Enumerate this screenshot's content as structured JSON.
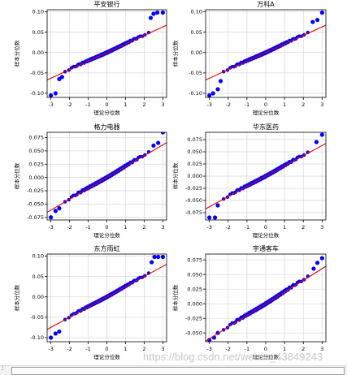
{
  "watermark": "https://blog.csdn.net/weixin_43849243",
  "footer": {
    "marker": ":"
  },
  "colors": {
    "points": "#0000ff",
    "fit_line": "#e00000",
    "grid": "#d9d9d9",
    "axes": "#000000"
  },
  "chart_data": [
    {
      "type": "scatter",
      "title": "平安银行",
      "xlabel": "理论分位数",
      "ylabel": "样本分位数",
      "xlim": [
        -3.2,
        3.2
      ],
      "ylim": [
        -0.11,
        0.105
      ],
      "xticks": [
        -3,
        -2,
        -1,
        0,
        1,
        2,
        3
      ],
      "yticks": [
        -0.1,
        -0.05,
        0.0,
        0.05,
        0.1
      ],
      "yticklabels": [
        "-0.10",
        "-0.05",
        "0.00",
        "0.05",
        "0.10"
      ],
      "grid": true,
      "fit_line": {
        "slope": 0.021,
        "intercept": 0.0
      },
      "tail_points": {
        "low": [
          [
            -3.0,
            -0.105
          ],
          [
            -2.75,
            -0.1
          ],
          [
            -2.55,
            -0.065
          ],
          [
            -2.4,
            -0.06
          ]
        ],
        "high": [
          [
            2.35,
            0.085
          ],
          [
            2.5,
            0.095
          ],
          [
            2.7,
            0.098
          ],
          [
            3.0,
            0.098
          ]
        ]
      }
    },
    {
      "type": "scatter",
      "title": "万科A",
      "xlabel": "理论分位数",
      "ylabel": "样本分位数",
      "xlim": [
        -3.2,
        3.2
      ],
      "ylim": [
        -0.11,
        0.105
      ],
      "xticks": [
        -3,
        -2,
        -1,
        0,
        1,
        2,
        3
      ],
      "yticks": [
        -0.1,
        -0.05,
        0.0,
        0.05,
        0.1
      ],
      "yticklabels": [
        "-0.10",
        "-0.05",
        "0.00",
        "0.05",
        "0.10"
      ],
      "grid": true,
      "fit_line": {
        "slope": 0.021,
        "intercept": 0.0
      },
      "tail_points": {
        "low": [
          [
            -3.0,
            -0.105
          ],
          [
            -2.8,
            -0.1
          ],
          [
            -2.55,
            -0.09
          ],
          [
            -2.4,
            -0.07
          ]
        ],
        "high": [
          [
            2.5,
            0.075
          ],
          [
            2.75,
            0.08
          ],
          [
            3.0,
            0.098
          ]
        ]
      }
    },
    {
      "type": "scatter",
      "title": "格力电器",
      "xlabel": "理论分位数",
      "ylabel": "样本分位数",
      "xlim": [
        -3.2,
        3.2
      ],
      "ylim": [
        -0.08,
        0.085
      ],
      "xticks": [
        -3,
        -2,
        -1,
        0,
        1,
        2,
        3
      ],
      "yticks": [
        -0.075,
        -0.05,
        -0.025,
        0.0,
        0.025,
        0.05,
        0.075
      ],
      "yticklabels": [
        "-0.075",
        "-0.050",
        "-0.025",
        "0.000",
        "0.025",
        "0.050",
        "0.075"
      ],
      "grid": true,
      "fit_line": {
        "slope": 0.0205,
        "intercept": 0.0
      },
      "tail_points": {
        "low": [
          [
            -3.0,
            -0.075
          ],
          [
            -2.75,
            -0.063
          ],
          [
            -2.55,
            -0.058
          ]
        ],
        "high": [
          [
            2.5,
            0.06
          ],
          [
            2.75,
            0.065
          ],
          [
            3.0,
            0.085
          ]
        ]
      }
    },
    {
      "type": "scatter",
      "title": "华东医药",
      "xlabel": "理论分位数",
      "ylabel": "样本分位数",
      "xlim": [
        -3.2,
        3.2
      ],
      "ylim": [
        -0.09,
        0.09
      ],
      "xticks": [
        -3,
        -2,
        -1,
        0,
        1,
        2,
        3
      ],
      "yticks": [
        -0.075,
        -0.05,
        -0.025,
        0.0,
        0.025,
        0.05,
        0.075
      ],
      "yticklabels": [
        "-0.075",
        "-0.050",
        "-0.025",
        "0.000",
        "0.025",
        "0.050",
        "0.075"
      ],
      "grid": true,
      "fit_line": {
        "slope": 0.021,
        "intercept": 0.0
      },
      "tail_points": {
        "low": [
          [
            -3.0,
            -0.085
          ],
          [
            -2.7,
            -0.085
          ],
          [
            -2.55,
            -0.06
          ]
        ],
        "high": [
          [
            2.7,
            0.07
          ],
          [
            3.0,
            0.085
          ]
        ]
      }
    },
    {
      "type": "scatter",
      "title": "东方雨虹",
      "xlabel": "理论分位数",
      "ylabel": "样本分位数",
      "xlim": [
        -3.2,
        3.2
      ],
      "ylim": [
        -0.11,
        0.105
      ],
      "xticks": [
        -3,
        -2,
        -1,
        0,
        1,
        2,
        3
      ],
      "yticks": [
        -0.1,
        -0.05,
        0.0,
        0.05,
        0.1
      ],
      "yticklabels": [
        "-0.10",
        "-0.05",
        "0.00",
        "0.05",
        "0.10"
      ],
      "grid": true,
      "fit_line": {
        "slope": 0.025,
        "intercept": 0.0
      },
      "tail_points": {
        "low": [
          [
            -3.0,
            -0.1
          ],
          [
            -2.75,
            -0.09
          ],
          [
            -2.55,
            -0.085
          ]
        ],
        "high": [
          [
            2.4,
            0.085
          ],
          [
            2.55,
            0.098
          ],
          [
            2.75,
            0.098
          ],
          [
            3.0,
            0.098
          ]
        ]
      }
    },
    {
      "type": "scatter",
      "title": "宇通客车",
      "xlabel": "理论分位数",
      "ylabel": "样本分位数",
      "xlim": [
        -3.2,
        3.2
      ],
      "ylim": [
        -0.065,
        0.085
      ],
      "xticks": [
        -3,
        -2,
        -1,
        0,
        1,
        2,
        3
      ],
      "yticks": [
        -0.05,
        -0.025,
        0.0,
        0.025,
        0.05,
        0.075
      ],
      "yticklabels": [
        "-0.050",
        "-0.025",
        "0.000",
        "0.025",
        "0.050",
        "0.075"
      ],
      "grid": true,
      "fit_line": {
        "slope": 0.02,
        "intercept": 0.0
      },
      "tail_points": {
        "low": [
          [
            -3.0,
            -0.062
          ],
          [
            -2.75,
            -0.058
          ],
          [
            -2.55,
            -0.05
          ]
        ],
        "high": [
          [
            2.55,
            0.06
          ],
          [
            2.75,
            0.07
          ],
          [
            3.0,
            0.078
          ]
        ]
      }
    }
  ]
}
